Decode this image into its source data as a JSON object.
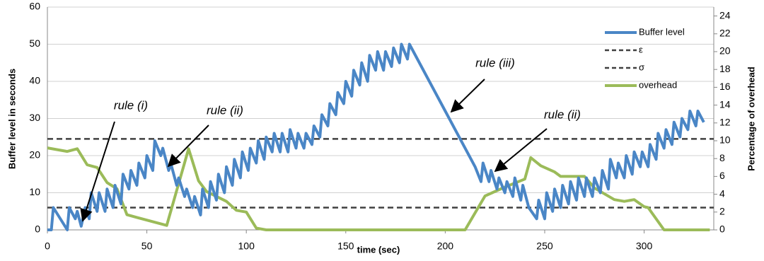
{
  "chart_data": {
    "type": "line",
    "xlabel": "time (sec)",
    "ylabel": "Buffer level in seconds",
    "y2label": "Percentage of overhead",
    "xlim": [
      0,
      335
    ],
    "xticks": [
      0,
      50,
      100,
      150,
      200,
      250,
      300
    ],
    "ylim": [
      0,
      60
    ],
    "yticks": [
      0,
      10,
      20,
      30,
      40,
      50,
      60
    ],
    "y2lim": [
      0,
      25
    ],
    "y2ticks": [
      0,
      2,
      4,
      6,
      8,
      10,
      12,
      14,
      16,
      18,
      20,
      22,
      24
    ],
    "grid": true,
    "legend": "upper right",
    "annotations": [
      "rule (i)",
      "rule (ii)",
      "rule (iii)",
      "rule (ii)"
    ],
    "series": [
      {
        "name": "Buffer level",
        "color": "#4a86c6",
        "x": [
          0,
          2,
          3,
          10,
          11,
          14,
          15,
          17,
          19,
          21,
          22,
          25,
          26,
          29,
          30,
          33,
          34,
          37,
          38,
          41,
          42,
          45,
          46,
          49,
          50,
          53,
          54,
          57,
          58,
          61,
          62,
          65,
          66,
          69,
          70,
          73,
          74,
          77,
          78,
          81,
          82,
          85,
          86,
          89,
          90,
          93,
          94,
          97,
          98,
          101,
          102,
          105,
          106,
          109,
          110,
          113,
          114,
          117,
          118,
          121,
          122,
          125,
          126,
          129,
          130,
          133,
          134,
          137,
          138,
          141,
          142,
          145,
          146,
          149,
          150,
          153,
          154,
          157,
          158,
          161,
          162,
          165,
          166,
          169,
          170,
          173,
          174,
          177,
          178,
          181,
          182,
          200,
          215,
          218,
          219,
          222,
          223,
          226,
          227,
          230,
          231,
          234,
          235,
          238,
          239,
          242,
          246,
          247,
          250,
          251,
          254,
          255,
          258,
          259,
          262,
          263,
          266,
          267,
          270,
          271,
          274,
          275,
          278,
          279,
          282,
          283,
          286,
          287,
          290,
          291,
          294,
          295,
          298,
          299,
          302,
          303,
          306,
          307,
          310,
          311,
          314,
          315,
          318,
          319,
          322,
          323,
          326,
          327,
          330
        ],
        "values": [
          0,
          0,
          6,
          0,
          6,
          3,
          5,
          1,
          6,
          3,
          10,
          5,
          10,
          5,
          11,
          6,
          12,
          7,
          15,
          11,
          16,
          12,
          18,
          14,
          20,
          16,
          24,
          20,
          22,
          16,
          18,
          12,
          14,
          9,
          11,
          6,
          9,
          4,
          11,
          6,
          13,
          8,
          15,
          10,
          17,
          12,
          19,
          14,
          21,
          16,
          22,
          18,
          24,
          19,
          25,
          21,
          26,
          21,
          26,
          21,
          27,
          22,
          26,
          22,
          26,
          23,
          28,
          25,
          31,
          28,
          34,
          31,
          37,
          34,
          40,
          36,
          43,
          39,
          45,
          40,
          47,
          43,
          48,
          43,
          48,
          44,
          49,
          45,
          50,
          46,
          50,
          32,
          17,
          13,
          18,
          13,
          16,
          11,
          14,
          10,
          13,
          9,
          14,
          8,
          12,
          6,
          3,
          8,
          3,
          10,
          5,
          11,
          6,
          12,
          7,
          13,
          8,
          14,
          9,
          14,
          9,
          14,
          10,
          16,
          11,
          19,
          14,
          18,
          14,
          20,
          15,
          21,
          17,
          21,
          17,
          23,
          19,
          26,
          22,
          27,
          23,
          29,
          25,
          30,
          27,
          32,
          28,
          32,
          29
        ]
      },
      {
        "name": "ε",
        "color": "#404040",
        "dash": true,
        "x": [
          0,
          335
        ],
        "values": [
          6,
          6
        ]
      },
      {
        "name": "σ",
        "color": "#404040",
        "dash": true,
        "x": [
          0,
          335
        ],
        "values": [
          24.5,
          24.5
        ]
      },
      {
        "name": "overhead",
        "color": "#9bbb59",
        "axis": "y2",
        "x": [
          0,
          10,
          15,
          20,
          25,
          30,
          35,
          40,
          45,
          60,
          71,
          76,
          80,
          90,
          95,
          100,
          105,
          110,
          210,
          220,
          230,
          240,
          243,
          248,
          255,
          258,
          270,
          275,
          285,
          290,
          295,
          300,
          302,
          310,
          333
        ],
        "values": [
          9.2,
          8.8,
          9.1,
          7.3,
          7,
          5.3,
          4.6,
          1.7,
          1.4,
          0.5,
          9.1,
          5.5,
          4.3,
          3.2,
          2.2,
          2,
          0.2,
          0,
          0,
          3.8,
          4.8,
          5.7,
          8.1,
          7.2,
          6.5,
          6,
          6,
          4.7,
          3.4,
          3.2,
          3.4,
          2.6,
          2.5,
          0,
          0
        ]
      }
    ]
  }
}
